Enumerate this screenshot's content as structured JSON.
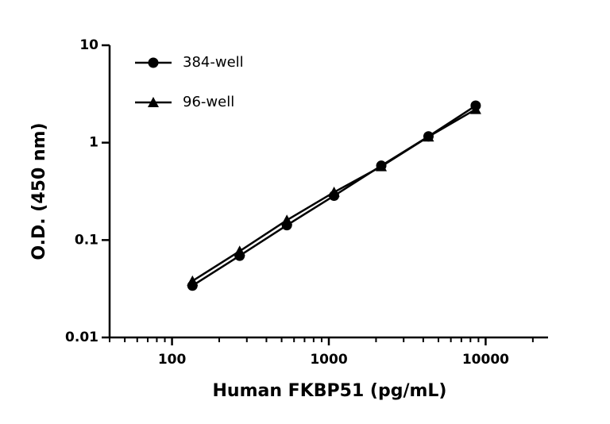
{
  "chart_data": {
    "type": "line",
    "x_label": "Human FKBP51 (pg/mL)",
    "y_label": "O.D. (450 nm)",
    "x": [
      135,
      270,
      540,
      1080,
      2160,
      4320,
      8640
    ],
    "series": [
      {
        "name": "384-well",
        "color": "#000000",
        "marker": "circle",
        "values": [
          0.034,
          0.069,
          0.142,
          0.285,
          0.58,
          1.16,
          2.4
        ]
      },
      {
        "name": "96-well",
        "color": "#000000",
        "marker": "triangle",
        "values": [
          0.038,
          0.077,
          0.16,
          0.31,
          0.57,
          1.15,
          2.2
        ]
      }
    ],
    "xscale": "log",
    "yscale": "log",
    "xlim": [
      40,
      25000
    ],
    "ylim": [
      0.01,
      10
    ],
    "xticks": [
      100,
      1000,
      10000
    ],
    "xminorticks": [
      40,
      50,
      60,
      70,
      80,
      90,
      200,
      300,
      400,
      500,
      600,
      700,
      800,
      900,
      2000,
      3000,
      4000,
      5000,
      6000,
      7000,
      8000,
      9000,
      20000
    ],
    "yticks": [
      0.01,
      0.1,
      1,
      10
    ],
    "legend": "upper left"
  }
}
